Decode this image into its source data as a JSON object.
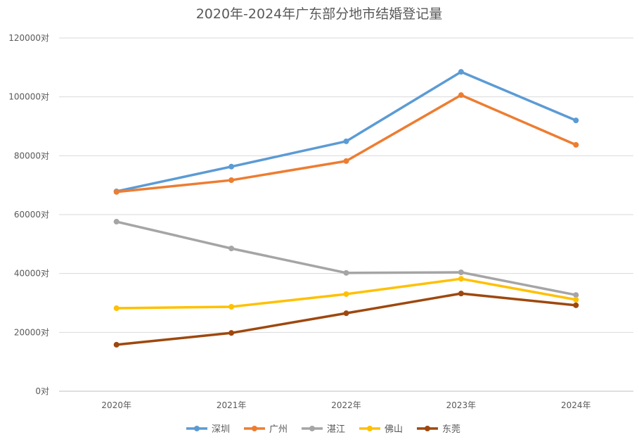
{
  "chart_data": {
    "type": "line",
    "title": "2020年-2024年广东部分地市结婚登记量",
    "xlabel": "",
    "ylabel": "",
    "categories": [
      "2020年",
      "2021年",
      "2022年",
      "2023年",
      "2024年"
    ],
    "ylim": [
      0,
      120000
    ],
    "yticks": [
      0,
      20000,
      40000,
      60000,
      80000,
      100000,
      120000
    ],
    "ytick_labels": [
      "0对",
      "20000对",
      "40000对",
      "60000对",
      "80000对",
      "100000对",
      "120000对"
    ],
    "grid": true,
    "legend_position": "bottom",
    "series": [
      {
        "name": "深圳",
        "color": "#5B9BD5",
        "values": [
          67900,
          76300,
          84900,
          108500,
          92000
        ]
      },
      {
        "name": "广州",
        "color": "#ED7D31",
        "values": [
          67700,
          71700,
          78200,
          100600,
          83700
        ]
      },
      {
        "name": "湛江",
        "color": "#A5A5A5",
        "values": [
          57600,
          48500,
          40200,
          40400,
          32700
        ]
      },
      {
        "name": "佛山",
        "color": "#FFC000",
        "values": [
          28200,
          28700,
          33000,
          38200,
          31100
        ]
      },
      {
        "name": "东莞",
        "color": "#9E480E",
        "values": [
          15800,
          19800,
          26500,
          33200,
          29200
        ]
      }
    ]
  }
}
